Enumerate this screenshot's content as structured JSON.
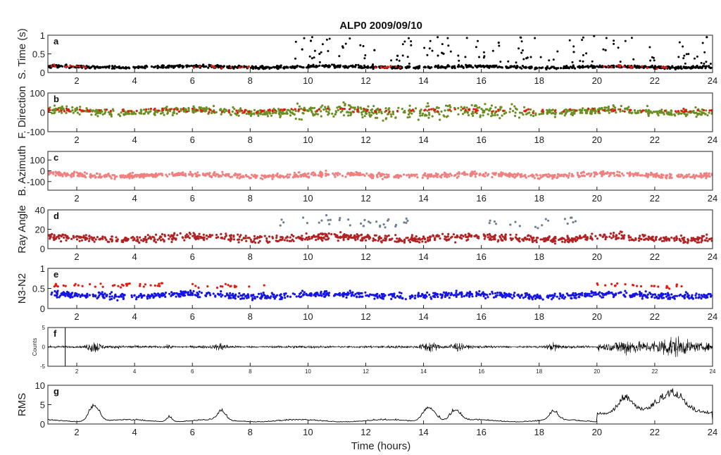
{
  "title": "ALP0 2009/09/10",
  "xlabel": "Time (hours)",
  "chart_data": [
    {
      "id": "a",
      "type": "scatter",
      "ylabel": "S. Time (s)",
      "ylim": [
        0,
        1
      ],
      "yticks": [
        0,
        0.5,
        1
      ],
      "ytick_labels": [
        "0",
        "0.5",
        "1"
      ],
      "xlim": [
        1,
        24
      ],
      "xticks": [
        2,
        4,
        6,
        8,
        10,
        12,
        14,
        16,
        18,
        20,
        22,
        24
      ],
      "series": [
        {
          "color": "#000000",
          "baseline": 0.15,
          "spread": 0.04
        },
        {
          "color": "#e8190f",
          "baseline": 0.16,
          "spread": 0.04
        }
      ],
      "outliers": [
        {
          "x": 9.8,
          "y": 0.62
        },
        {
          "x": 10.1,
          "y": 0.85
        },
        {
          "x": 10.4,
          "y": 0.5
        },
        {
          "x": 11.2,
          "y": 0.7
        },
        {
          "x": 12.3,
          "y": 0.6
        },
        {
          "x": 13.1,
          "y": 0.45
        },
        {
          "x": 16.6,
          "y": 0.8
        },
        {
          "x": 19.2,
          "y": 0.55
        },
        {
          "x": 19.9,
          "y": 0.98
        },
        {
          "x": 20.3,
          "y": 0.6
        },
        {
          "x": 23.8,
          "y": 0.95
        },
        {
          "x": 17.6,
          "y": 0.4
        }
      ]
    },
    {
      "id": "b",
      "type": "scatter",
      "ylabel": "F. Direction",
      "ylim": [
        -100,
        100
      ],
      "yticks": [
        -100,
        0,
        100
      ],
      "ytick_labels": [
        "-100",
        "0",
        "100"
      ],
      "xlim": [
        1,
        24
      ],
      "xticks": [
        2,
        4,
        6,
        8,
        10,
        12,
        14,
        16,
        18,
        20,
        22,
        24
      ],
      "series": [
        {
          "color": "#6b8e23",
          "baseline": 5,
          "spread": 20
        },
        {
          "color": "#e8190f",
          "baseline": 10,
          "spread": 10
        }
      ]
    },
    {
      "id": "c",
      "type": "scatter",
      "ylabel": "B. Azimuth",
      "ylim": [
        -180,
        180
      ],
      "yticks": [
        -100,
        0,
        100
      ],
      "ytick_labels": [
        "-100",
        "0",
        "100"
      ],
      "xlim": [
        1,
        24
      ],
      "xticks": [
        2,
        4,
        6,
        8,
        10,
        12,
        14,
        16,
        18,
        20,
        22,
        24
      ],
      "series": [
        {
          "color": "#f08080",
          "baseline": -40,
          "spread": 25
        }
      ]
    },
    {
      "id": "d",
      "type": "scatter",
      "ylabel": "Ray Angle",
      "ylim": [
        0,
        40
      ],
      "yticks": [
        0,
        20,
        40
      ],
      "ytick_labels": [
        "0",
        "20",
        "40"
      ],
      "xlim": [
        1,
        24
      ],
      "xticks": [
        2,
        4,
        6,
        8,
        10,
        12,
        14,
        16,
        18,
        20,
        22,
        24
      ],
      "series": [
        {
          "color": "#b22222",
          "baseline": 11,
          "spread": 4
        },
        {
          "color": "#708090",
          "baseline": 28,
          "spread": 6
        }
      ]
    },
    {
      "id": "e",
      "type": "scatter",
      "ylabel": "N3-N2",
      "ylim": [
        0,
        1
      ],
      "yticks": [
        0,
        0.5,
        1
      ],
      "ytick_labels": [
        "0",
        "0.5",
        "1"
      ],
      "xlim": [
        1,
        24
      ],
      "xticks": [
        2,
        4,
        6,
        8,
        10,
        12,
        14,
        16,
        18,
        20,
        22,
        24
      ],
      "series": [
        {
          "color": "#1515e6",
          "baseline": 0.33,
          "spread": 0.08
        },
        {
          "color": "#e8190f",
          "baseline": 0.58,
          "spread": 0.06
        }
      ]
    },
    {
      "id": "f",
      "type": "line",
      "ylabel": "Counts",
      "ylim": [
        -5,
        5
      ],
      "yticks": [
        -5,
        0,
        5
      ],
      "ytick_labels": [
        "-5",
        "0",
        "5"
      ],
      "xlim": [
        1,
        24
      ],
      "xticks": [
        2,
        4,
        6,
        8,
        10,
        12,
        14,
        16,
        18,
        20,
        22,
        24
      ],
      "series": [
        {
          "color": "#000000"
        }
      ]
    },
    {
      "id": "g",
      "type": "line",
      "ylabel": "RMS",
      "ylim": [
        0,
        10
      ],
      "yticks": [
        0,
        5,
        10
      ],
      "ytick_labels": [
        "0",
        "5",
        "10"
      ],
      "xlim": [
        1,
        24
      ],
      "xticks": [
        2,
        4,
        6,
        8,
        10,
        12,
        14,
        16,
        18,
        20,
        22,
        24
      ],
      "series": [
        {
          "color": "#000000"
        }
      ]
    }
  ]
}
